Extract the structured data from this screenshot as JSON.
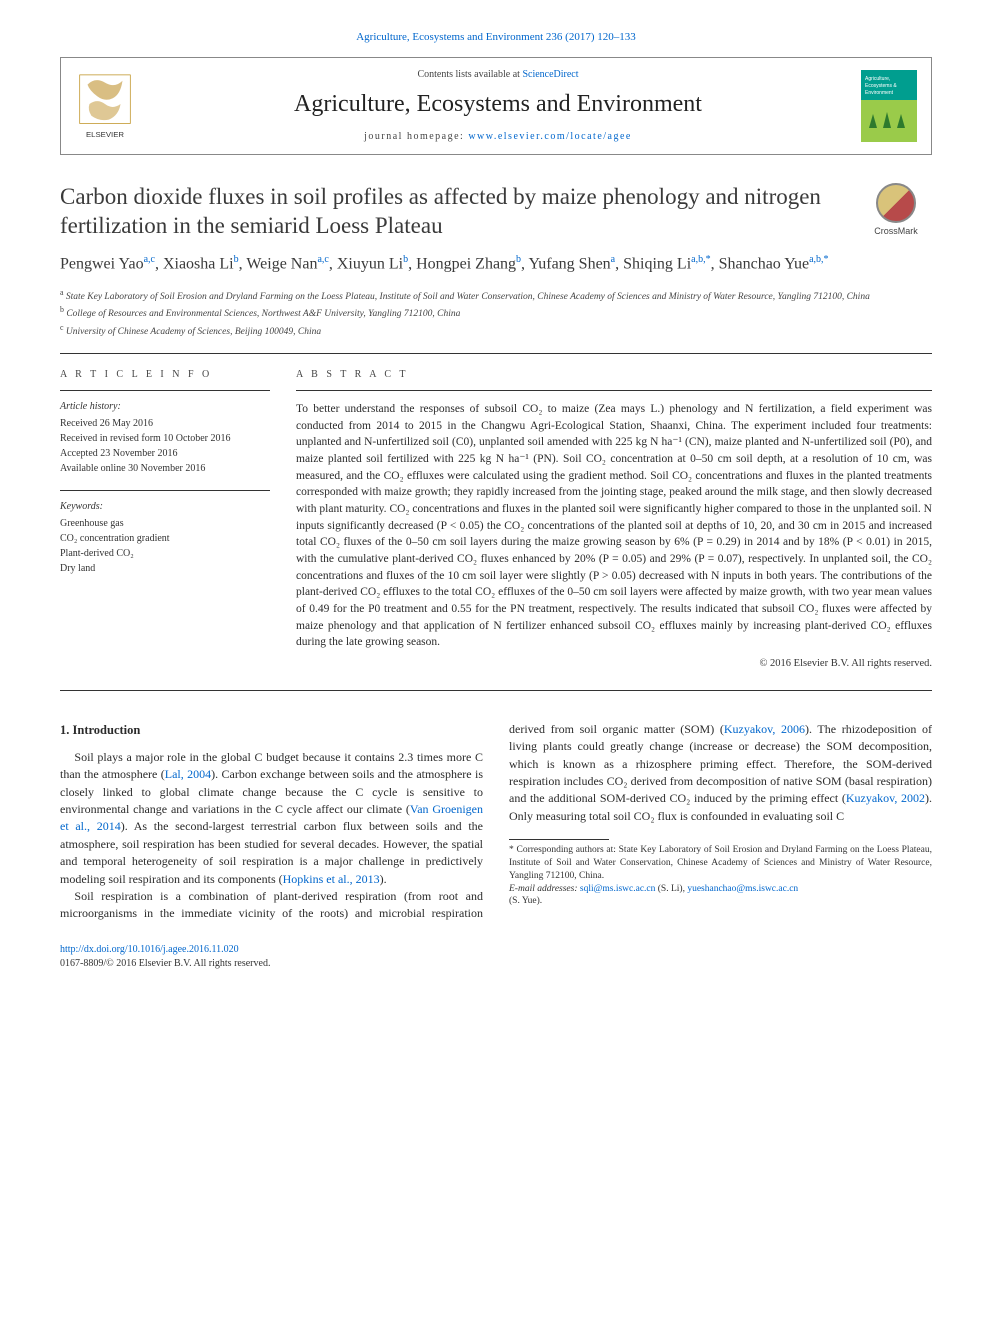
{
  "citation": "Agriculture, Ecosystems and Environment 236 (2017) 120–133",
  "header": {
    "contents_prefix": "Contents lists available at ",
    "contents_link": "ScienceDirect",
    "journal_name": "Agriculture, Ecosystems and Environment",
    "homepage_prefix": "journal homepage: ",
    "homepage_link": "www.elsevier.com/locate/agee"
  },
  "journal_cover": {
    "top_band_color": "#009e8f",
    "mid_band_color": "#9acb4a",
    "label_top": "Agriculture,",
    "label_mid1": "Ecosystems &",
    "label_mid2": "Environment"
  },
  "article": {
    "title": "Carbon dioxide fluxes in soil profiles as affected by maize phenology and nitrogen fertilization in the semiarid Loess Plateau",
    "crossmark_label": "CrossMark"
  },
  "authors_html": "Pengwei Yao<sup>a,c</sup>, Xiaosha Li<sup>b</sup>, Weige Nan<sup>a,c</sup>, Xiuyun Li<sup>b</sup>, Hongpei Zhang<sup>b</sup>, Yufang Shen<sup>a</sup>, Shiqing Li<sup>a,b,*</sup>, Shanchao Yue<sup>a,b,*</sup>",
  "affiliations": [
    {
      "sup": "a",
      "text": "State Key Laboratory of Soil Erosion and Dryland Farming on the Loess Plateau, Institute of Soil and Water Conservation, Chinese Academy of Sciences and Ministry of Water Resource, Yangling 712100, China"
    },
    {
      "sup": "b",
      "text": "College of Resources and Environmental Sciences, Northwest A&F University, Yangling 712100, China"
    },
    {
      "sup": "c",
      "text": "University of Chinese Academy of Sciences, Beijing 100049, China"
    }
  ],
  "info": {
    "heading": "A R T I C L E   I N F O",
    "history_label": "Article history:",
    "history": [
      "Received 26 May 2016",
      "Received in revised form 10 October 2016",
      "Accepted 23 November 2016",
      "Available online 30 November 2016"
    ],
    "keywords_label": "Keywords:",
    "keywords": [
      "Greenhouse gas",
      "CO₂ concentration gradient",
      "Plant-derived CO₂",
      "Dry land"
    ]
  },
  "abstract": {
    "heading": "A B S T R A C T",
    "text": "To better understand the responses of subsoil CO₂ to maize (Zea mays L.) phenology and N fertilization, a field experiment was conducted from 2014 to 2015 in the Changwu Agri-Ecological Station, Shaanxi, China. The experiment included four treatments: unplanted and N-unfertilized soil (C0), unplanted soil amended with 225 kg N ha⁻¹ (CN), maize planted and N-unfertilized soil (P0), and maize planted soil fertilized with 225 kg N ha⁻¹ (PN). Soil CO₂ concentration at 0–50 cm soil depth, at a resolution of 10 cm, was measured, and the CO₂ effluxes were calculated using the gradient method. Soil CO₂ concentrations and fluxes in the planted treatments corresponded with maize growth; they rapidly increased from the jointing stage, peaked around the milk stage, and then slowly decreased with plant maturity. CO₂ concentrations and fluxes in the planted soil were significantly higher compared to those in the unplanted soil. N inputs significantly decreased (P < 0.05) the CO₂ concentrations of the planted soil at depths of 10, 20, and 30 cm in 2015 and increased total CO₂ fluxes of the 0–50 cm soil layers during the maize growing season by 6% (P = 0.29) in 2014 and by 18% (P < 0.01) in 2015, with the cumulative plant-derived CO₂ fluxes enhanced by 20% (P = 0.05) and 29% (P = 0.07), respectively. In unplanted soil, the CO₂ concentrations and fluxes of the 10 cm soil layer were slightly (P > 0.05) decreased with N inputs in both years. The contributions of the plant-derived CO₂ effluxes to the total CO₂ effluxes of the 0–50 cm soil layers were affected by maize growth, with two year mean values of 0.49 for the P0 treatment and 0.55 for the PN treatment, respectively. The results indicated that subsoil CO₂ fluxes were affected by maize phenology and that application of N fertilizer enhanced subsoil CO₂ effluxes mainly by increasing plant-derived CO₂ effluxes during the late growing season.",
    "copyright": "© 2016 Elsevier B.V. All rights reserved."
  },
  "body": {
    "section_heading": "1. Introduction",
    "p1_a": "Soil plays a major role in the global C budget because it contains 2.3 times more C than the atmosphere (",
    "p1_cite1": "Lal, 2004",
    "p1_b": "). Carbon exchange between soils and the atmosphere is closely linked to global climate change because the C cycle is sensitive to environmental change and variations in the C cycle affect our climate (",
    "p1_cite2": "Van Groenigen et al., 2014",
    "p1_c": "). As the second-largest terrestrial carbon flux between soils and the atmosphere, soil respiration has been studied for several decades. However, the spatial and temporal heterogeneity of soil respiration is a major challenge in predictively modeling soil respiration and its components (",
    "p1_cite3": "Hopkins et al., 2013",
    "p1_d": ").",
    "p2_a": "Soil respiration is a combination of plant-derived respiration (from root and microorganisms in the immediate vicinity of the roots) and microbial respiration derived from soil organic matter (SOM) (",
    "p2_cite1": "Kuzyakov, 2006",
    "p2_b": "). The rhizodeposition of living plants could greatly change (increase or decrease) the SOM decomposition, which is known as a rhizosphere priming effect. Therefore, the SOM-derived respiration includes CO₂ derived from decomposition of native SOM (basal respiration) and the additional SOM-derived CO₂ induced by the priming effect (",
    "p2_cite2": "Kuzyakov, 2002",
    "p2_c": "). Only measuring total soil CO₂ flux is confounded in evaluating soil C"
  },
  "footnotes": {
    "corr": "* Corresponding authors at: State Key Laboratory of Soil Erosion and Dryland Farming on the Loess Plateau, Institute of Soil and Water Conservation, Chinese Academy of Sciences and Ministry of Water Resource, Yangling 712100, China.",
    "email_label": "E-mail addresses: ",
    "email1": "sqli@ms.iswc.ac.cn",
    "email1_who": " (S. Li), ",
    "email2": "yueshanchao@ms.iswc.ac.cn",
    "email2_who": " (S. Yue)."
  },
  "footer": {
    "doi": "http://dx.doi.org/10.1016/j.agee.2016.11.020",
    "issn_line": "0167-8809/© 2016 Elsevier B.V. All rights reserved."
  }
}
